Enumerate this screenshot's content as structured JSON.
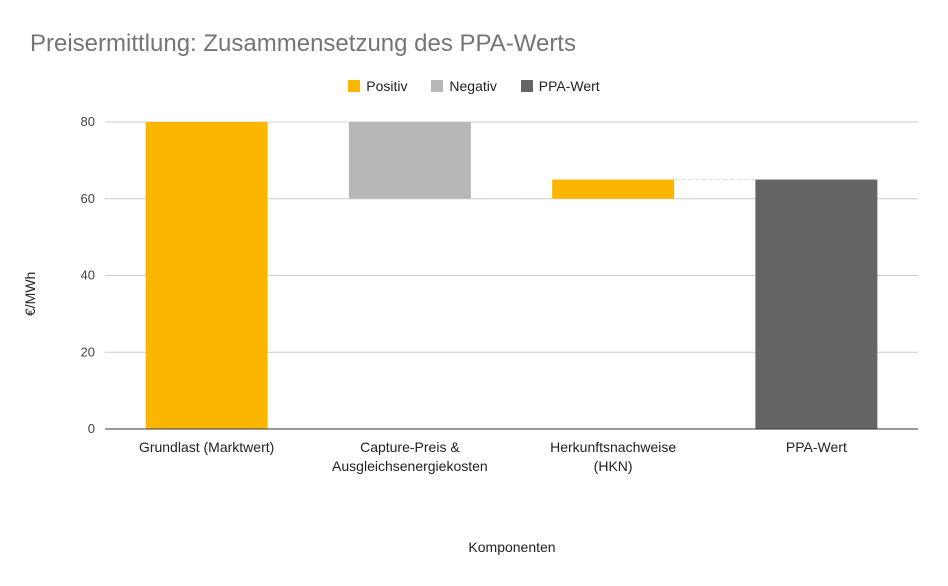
{
  "chart_data": {
    "type": "waterfall",
    "title": "Preisermittlung: Zusammensetzung des PPA-Werts",
    "xlabel": "Komponenten",
    "ylabel": "€/MWh",
    "ylim": [
      0,
      80
    ],
    "yticks": [
      "0",
      "20",
      "40",
      "60",
      "80"
    ],
    "legend_position": "top-center",
    "legend": [
      {
        "name": "Positiv",
        "color": "#FBB700"
      },
      {
        "name": "Negativ",
        "color": "#B7B6B8"
      },
      {
        "name": "PPA-Wert",
        "color": "#666466"
      }
    ],
    "categories": [
      [
        "Grundlast (Marktwert)"
      ],
      [
        "Capture-Preis &",
        "Ausgleichsenergiekosten"
      ],
      [
        "Herkunftsnachweise",
        "(HKN)"
      ],
      [
        "PPA-Wert"
      ]
    ],
    "bars": [
      {
        "from": 0,
        "to": 80,
        "kind": "Positiv"
      },
      {
        "from": 80,
        "to": 60,
        "kind": "Negativ"
      },
      {
        "from": 60,
        "to": 65,
        "kind": "Positiv"
      },
      {
        "from": 0,
        "to": 65,
        "kind": "PPA-Wert"
      }
    ]
  }
}
